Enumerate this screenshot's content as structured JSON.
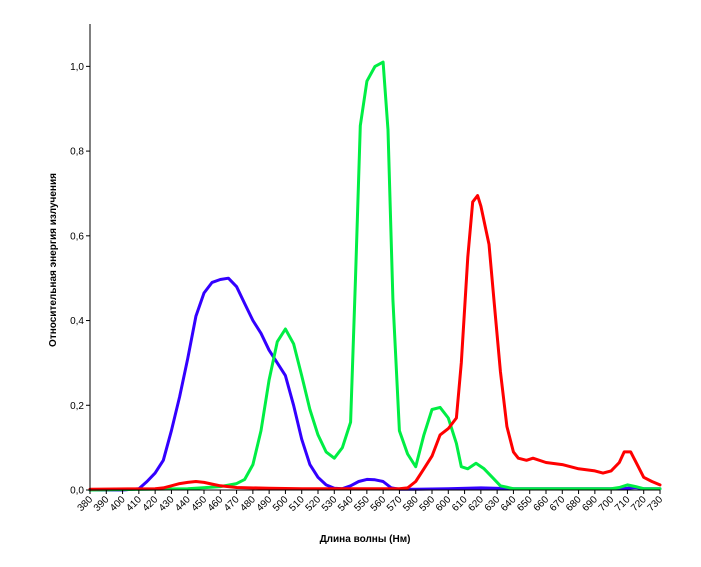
{
  "chart_data": {
    "type": "line",
    "title": "",
    "xlabel": "Длина волны (Нм)",
    "ylabel": "Относительная энергия излучения",
    "xlim": [
      380,
      730
    ],
    "ylim": [
      0,
      1.1
    ],
    "x_ticks": [
      380,
      390,
      400,
      410,
      420,
      430,
      440,
      450,
      460,
      470,
      480,
      490,
      500,
      510,
      520,
      530,
      540,
      550,
      560,
      570,
      580,
      590,
      600,
      610,
      620,
      630,
      640,
      650,
      660,
      670,
      680,
      690,
      700,
      710,
      720,
      730
    ],
    "y_ticks": [
      {
        "value": 0,
        "label": "0,0"
      },
      {
        "value": 0.2,
        "label": "0,2"
      },
      {
        "value": 0.4,
        "label": "0,4"
      },
      {
        "value": 0.6,
        "label": "0,6"
      },
      {
        "value": 0.8,
        "label": "0,8"
      },
      {
        "value": 1.0,
        "label": "1,0"
      }
    ],
    "grid": false,
    "legend": "none",
    "series": [
      {
        "color": "#3300ff",
        "points": [
          [
            380,
            0
          ],
          [
            400,
            0
          ],
          [
            410,
            0.003
          ],
          [
            415,
            0.02
          ],
          [
            420,
            0.04
          ],
          [
            425,
            0.07
          ],
          [
            430,
            0.14
          ],
          [
            435,
            0.22
          ],
          [
            440,
            0.31
          ],
          [
            445,
            0.41
          ],
          [
            450,
            0.465
          ],
          [
            455,
            0.49
          ],
          [
            460,
            0.497
          ],
          [
            465,
            0.5
          ],
          [
            470,
            0.48
          ],
          [
            475,
            0.44
          ],
          [
            480,
            0.4
          ],
          [
            485,
            0.37
          ],
          [
            490,
            0.33
          ],
          [
            495,
            0.3
          ],
          [
            500,
            0.27
          ],
          [
            505,
            0.2
          ],
          [
            510,
            0.12
          ],
          [
            515,
            0.06
          ],
          [
            520,
            0.03
          ],
          [
            525,
            0.012
          ],
          [
            530,
            0.004
          ],
          [
            535,
            0.003
          ],
          [
            540,
            0.01
          ],
          [
            545,
            0.02
          ],
          [
            550,
            0.025
          ],
          [
            555,
            0.024
          ],
          [
            560,
            0.02
          ],
          [
            565,
            0.005
          ],
          [
            570,
            0.002
          ],
          [
            580,
            0.002
          ],
          [
            600,
            0.003
          ],
          [
            620,
            0.005
          ],
          [
            640,
            0.003
          ],
          [
            660,
            0.003
          ],
          [
            700,
            0.003
          ],
          [
            710,
            0.004
          ],
          [
            715,
            0.006
          ],
          [
            720,
            0.003
          ],
          [
            730,
            0.003
          ]
        ]
      },
      {
        "color": "#00ee44",
        "points": [
          [
            380,
            0
          ],
          [
            440,
            0.003
          ],
          [
            460,
            0.008
          ],
          [
            470,
            0.015
          ],
          [
            475,
            0.025
          ],
          [
            480,
            0.06
          ],
          [
            485,
            0.14
          ],
          [
            490,
            0.26
          ],
          [
            495,
            0.35
          ],
          [
            500,
            0.38
          ],
          [
            505,
            0.345
          ],
          [
            510,
            0.27
          ],
          [
            515,
            0.19
          ],
          [
            520,
            0.13
          ],
          [
            525,
            0.09
          ],
          [
            530,
            0.075
          ],
          [
            535,
            0.1
          ],
          [
            540,
            0.16
          ],
          [
            543,
            0.5
          ],
          [
            546,
            0.86
          ],
          [
            550,
            0.965
          ],
          [
            555,
            1.0
          ],
          [
            560,
            1.01
          ],
          [
            563,
            0.85
          ],
          [
            566,
            0.45
          ],
          [
            570,
            0.14
          ],
          [
            575,
            0.085
          ],
          [
            580,
            0.055
          ],
          [
            585,
            0.13
          ],
          [
            590,
            0.19
          ],
          [
            595,
            0.195
          ],
          [
            600,
            0.17
          ],
          [
            605,
            0.11
          ],
          [
            608,
            0.055
          ],
          [
            612,
            0.05
          ],
          [
            617,
            0.063
          ],
          [
            622,
            0.05
          ],
          [
            627,
            0.03
          ],
          [
            632,
            0.01
          ],
          [
            640,
            0.003
          ],
          [
            700,
            0.003
          ],
          [
            705,
            0.006
          ],
          [
            710,
            0.012
          ],
          [
            715,
            0.008
          ],
          [
            720,
            0.003
          ],
          [
            730,
            0.003
          ]
        ]
      },
      {
        "color": "#ff0000",
        "points": [
          [
            380,
            0.002
          ],
          [
            420,
            0.003
          ],
          [
            425,
            0.005
          ],
          [
            430,
            0.01
          ],
          [
            435,
            0.015
          ],
          [
            440,
            0.018
          ],
          [
            445,
            0.02
          ],
          [
            450,
            0.018
          ],
          [
            455,
            0.014
          ],
          [
            460,
            0.01
          ],
          [
            470,
            0.006
          ],
          [
            490,
            0.004
          ],
          [
            510,
            0.003
          ],
          [
            540,
            0.003
          ],
          [
            560,
            0.003
          ],
          [
            570,
            0.003
          ],
          [
            575,
            0.005
          ],
          [
            580,
            0.02
          ],
          [
            585,
            0.05
          ],
          [
            590,
            0.08
          ],
          [
            595,
            0.13
          ],
          [
            600,
            0.145
          ],
          [
            605,
            0.17
          ],
          [
            608,
            0.3
          ],
          [
            612,
            0.55
          ],
          [
            615,
            0.68
          ],
          [
            618,
            0.695
          ],
          [
            620,
            0.67
          ],
          [
            625,
            0.58
          ],
          [
            628,
            0.45
          ],
          [
            632,
            0.28
          ],
          [
            636,
            0.15
          ],
          [
            640,
            0.09
          ],
          [
            643,
            0.075
          ],
          [
            648,
            0.07
          ],
          [
            652,
            0.075
          ],
          [
            660,
            0.065
          ],
          [
            670,
            0.06
          ],
          [
            680,
            0.05
          ],
          [
            690,
            0.045
          ],
          [
            695,
            0.04
          ],
          [
            700,
            0.045
          ],
          [
            705,
            0.065
          ],
          [
            708,
            0.09
          ],
          [
            712,
            0.09
          ],
          [
            716,
            0.06
          ],
          [
            720,
            0.03
          ],
          [
            725,
            0.02
          ],
          [
            730,
            0.012
          ]
        ]
      }
    ]
  }
}
